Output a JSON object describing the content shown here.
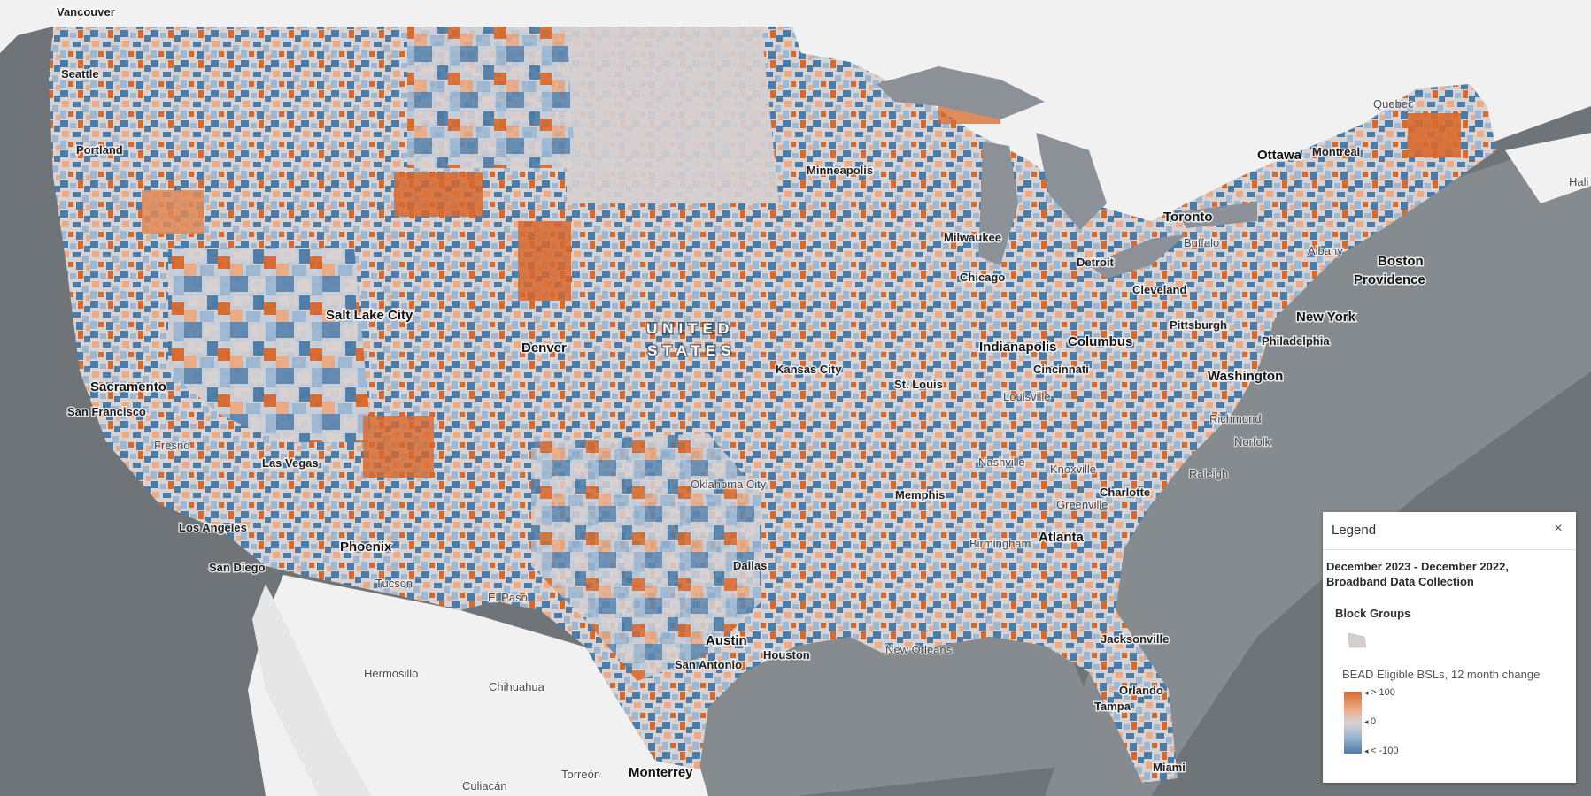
{
  "map": {
    "labels": {
      "country": [
        "UNITED",
        "STATES"
      ],
      "cities_major": [
        "Salt Lake City",
        "Denver",
        "Sacramento",
        "Phoenix",
        "Indianapolis",
        "Columbus",
        "Washington",
        "Atlanta",
        "Memphis",
        "Austin",
        "Dallas",
        "Monterrey",
        "Ottawa",
        "Toronto",
        "Boston",
        "Providence",
        "New York"
      ],
      "cities": [
        "Vancouver",
        "Seattle",
        "Portland",
        "San Francisco",
        "Las Vegas",
        "Los Angeles",
        "San Diego",
        "Minneapolis",
        "Milwaukee",
        "Chicago",
        "Detroit",
        "Cleveland",
        "Pittsburgh",
        "Philadelphia",
        "Kansas City",
        "St. Louis",
        "Cincinnati",
        "Charlotte",
        "Jacksonville",
        "Orlando",
        "Tampa",
        "Miami",
        "Houston",
        "San Antonio",
        "Montreal"
      ],
      "cities_soft": [
        "Fresno",
        "Tucson",
        "El Paso",
        "Oklahoma City",
        "Louisville",
        "Nashville",
        "Knoxville",
        "Greenville",
        "Birmingham",
        "New Orleans",
        "Richmond",
        "Norfolk",
        "Raleigh",
        "Buffalo",
        "Albany",
        "Quebec",
        "Hali",
        "Hermosillo",
        "Chihuahua",
        "Torreón",
        "Culiacán"
      ]
    },
    "colors": {
      "ocean": "#6f7479",
      "land_outside": "#f1f1f1",
      "high_increase": "#d8692b",
      "neutral": "#d9d2d2",
      "high_decrease": "#4b7ca8"
    }
  },
  "legend": {
    "title": "Legend",
    "close_label": "×",
    "layer_title_line1": "December 2023 - December 2022,",
    "layer_title_line2": "Broadband Data Collection",
    "sublayer": "Block Groups",
    "field": "BEAD Eligible BSLs, 12 month change",
    "ramp": {
      "high": "> 100",
      "mid": "0",
      "low": "< -100"
    },
    "swatch_color": "#d6cdcd"
  }
}
